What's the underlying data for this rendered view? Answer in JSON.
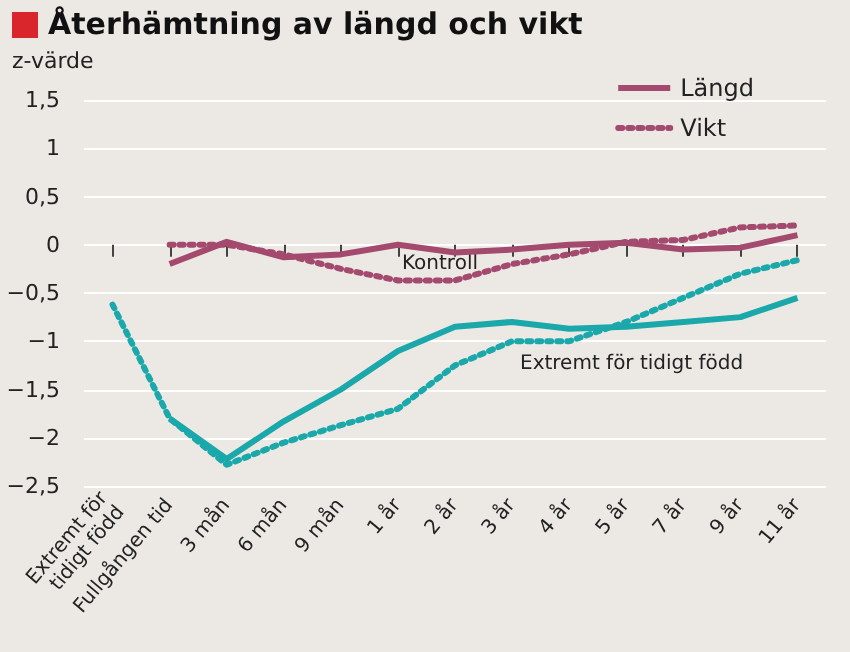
{
  "chart_data": {
    "type": "line",
    "title": "Återhämtning av längd och vikt",
    "ylabel": "z-värde",
    "categories": [
      "Extremt för\ntidigt född",
      "Fullgången tid",
      "3 mån",
      "6 mån",
      "9 mån",
      "1 år",
      "2 år",
      "3 år",
      "4 år",
      "5 år",
      "7 år",
      "9 år",
      "11 år"
    ],
    "series": [
      {
        "name": "Längd",
        "color": "#a34a6e",
        "line_style": "solid",
        "values": [
          null,
          -0.2,
          0.03,
          -0.13,
          -0.1,
          0.0,
          -0.08,
          -0.05,
          0.0,
          0.02,
          -0.05,
          -0.03,
          0.1
        ]
      },
      {
        "name": "Vikt",
        "color": "#a34a6e",
        "line_style": "dotted",
        "values": [
          null,
          0.0,
          0.0,
          -0.1,
          -0.25,
          -0.37,
          -0.37,
          -0.2,
          -0.1,
          0.03,
          0.05,
          0.18,
          0.2
        ]
      },
      {
        "color": "#1aa8aa",
        "line_style": "solid",
        "values": [
          null,
          -1.8,
          -2.22,
          -1.83,
          -1.5,
          -1.1,
          -0.85,
          -0.8,
          -0.87,
          -0.85,
          -0.8,
          -0.75,
          -0.55
        ]
      },
      {
        "color": "#1aa8aa",
        "line_style": "dotted",
        "values": [
          -0.62,
          -1.8,
          -2.28,
          -2.05,
          -1.87,
          -1.7,
          -1.25,
          -1.0,
          -1.0,
          -0.8,
          -0.55,
          -0.3,
          -0.16
        ]
      }
    ],
    "ylim": [
      -2.5,
      1.5
    ],
    "yticks": [
      {
        "value": -2.5,
        "label": "−2,5"
      },
      {
        "value": -2,
        "label": "−2"
      },
      {
        "value": -1.5,
        "label": "−1,5"
      },
      {
        "value": -1,
        "label": "−1"
      },
      {
        "value": -0.5,
        "label": "−0,5"
      },
      0,
      {
        "value": 0.5,
        "label": "0,5"
      },
      1,
      {
        "value": 1.5,
        "label": "1,5"
      }
    ],
    "annotations": [
      "Kontroll",
      "Extremt för tidigt född"
    ],
    "grid": "y",
    "legend": "top right",
    "marker": "none"
  }
}
